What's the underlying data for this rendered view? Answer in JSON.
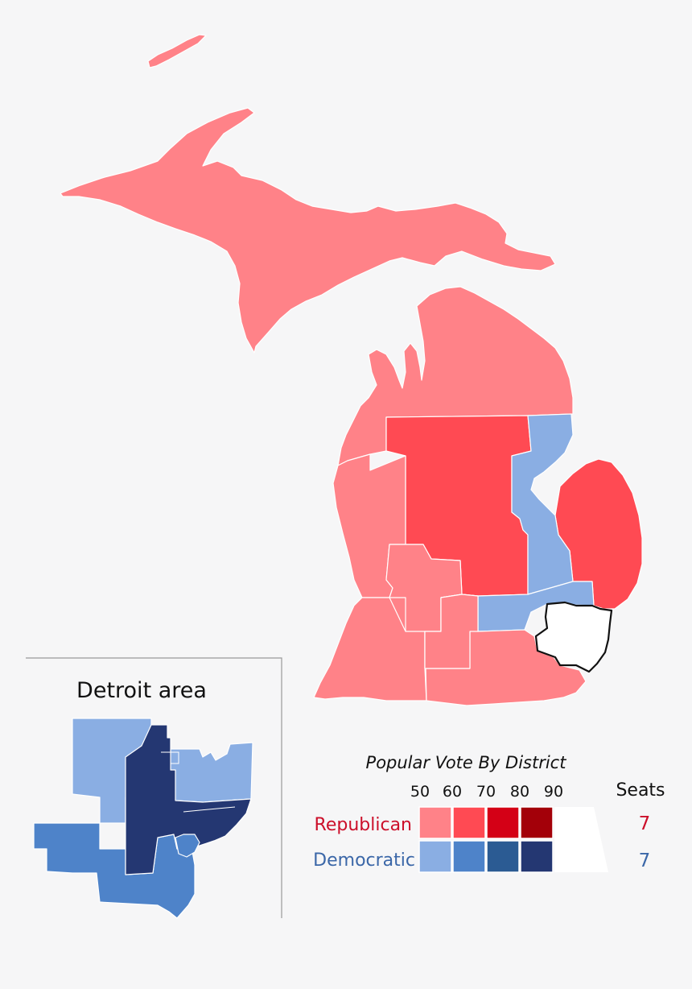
{
  "inset": {
    "title": "Detroit area"
  },
  "legend": {
    "title": "Popular Vote By District",
    "scale_labels": [
      "50",
      "60",
      "70",
      "80",
      "90"
    ],
    "seats_header": "Seats",
    "parties": [
      {
        "name": "Republican",
        "seats": "7",
        "label_color": "#cc0f2a",
        "swatches": [
          "#ff8288",
          "#ff4a53",
          "#d40016",
          "#a30009"
        ]
      },
      {
        "name": "Democratic",
        "seats": "7",
        "label_color": "#3b67a8",
        "swatches": [
          "#8aaee3",
          "#4e83c9",
          "#2b5b93",
          "#243772"
        ]
      }
    ]
  },
  "colors": {
    "background": "#f6f6f7",
    "rep_50": "#ff8288",
    "rep_60": "#ff4a53",
    "dem_50": "#8aaee3",
    "dem_60": "#4e83c9",
    "dem_80": "#243772",
    "outline_district": "#ffffff"
  }
}
